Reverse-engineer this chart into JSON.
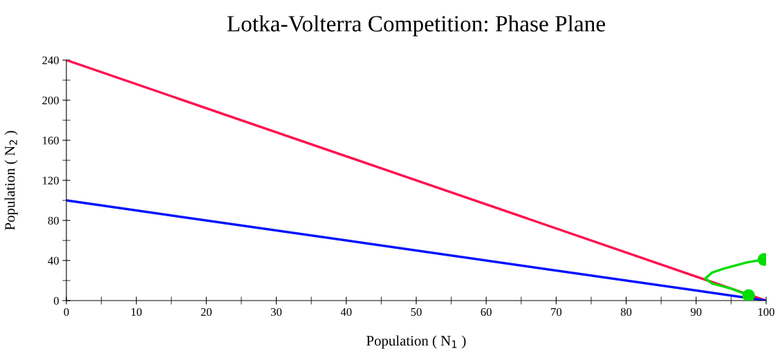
{
  "chart_data": {
    "type": "line",
    "title": "Lotka-Volterra Competition: Phase Plane",
    "xlabel": "Population ( N$_{1}$ )",
    "ylabel": "Population ( N$_{2}$ )",
    "xlim": [
      0,
      100
    ],
    "ylim": [
      0,
      240
    ],
    "xticks": [
      0,
      10,
      20,
      30,
      40,
      50,
      60,
      70,
      80,
      90,
      100
    ],
    "yticks": [
      0,
      40,
      80,
      120,
      160,
      200,
      240
    ],
    "grid": false,
    "legend": false,
    "series": [
      {
        "color": "#ff1050",
        "x": [
          0,
          100
        ],
        "values": [
          240,
          0
        ]
      },
      {
        "color": "#0010ff",
        "x": [
          0,
          100
        ],
        "values": [
          100,
          0
        ]
      },
      {
        "color": "#00dd00",
        "x": [
          99.7,
          97.2,
          94,
          92.3,
          91.3,
          92.3,
          95,
          96.5,
          97.5
        ],
        "values": [
          41,
          38,
          32,
          28,
          22,
          17,
          12,
          8,
          5
        ]
      },
      {
        "type": "scatter",
        "color": "#00dd00",
        "marker": "circle",
        "x": [
          99.7
        ],
        "values": [
          41
        ]
      },
      {
        "type": "scatter",
        "color": "#00dd00",
        "marker": "circle",
        "x": [
          97.5
        ],
        "values": [
          5
        ]
      }
    ]
  }
}
